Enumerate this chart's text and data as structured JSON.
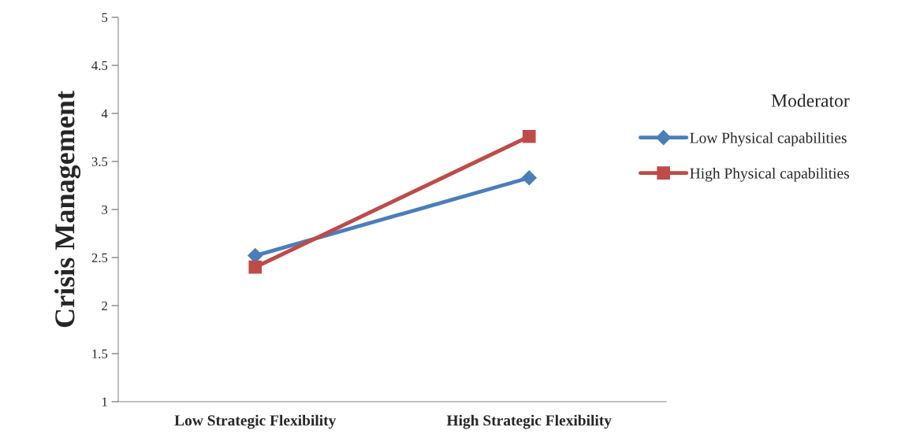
{
  "chart_data": {
    "type": "line",
    "ylabel": "Crisis Management",
    "categories": [
      "Low Strategic Flexibility",
      "High Strategic Flexibility"
    ],
    "series": [
      {
        "name": "Low Physical capabilities",
        "color": "#4a7ebb",
        "marker": "diamond",
        "values": [
          2.52,
          3.33
        ]
      },
      {
        "name": "High Physical capabilities",
        "color": "#be4b48",
        "marker": "square",
        "values": [
          2.4,
          3.76
        ]
      }
    ],
    "ylim": [
      1,
      5
    ],
    "yticks": [
      1,
      1.5,
      2,
      2.5,
      3,
      3.5,
      4,
      4.5,
      5
    ],
    "legend_title": "Moderator",
    "legend": "right",
    "grid": false
  }
}
